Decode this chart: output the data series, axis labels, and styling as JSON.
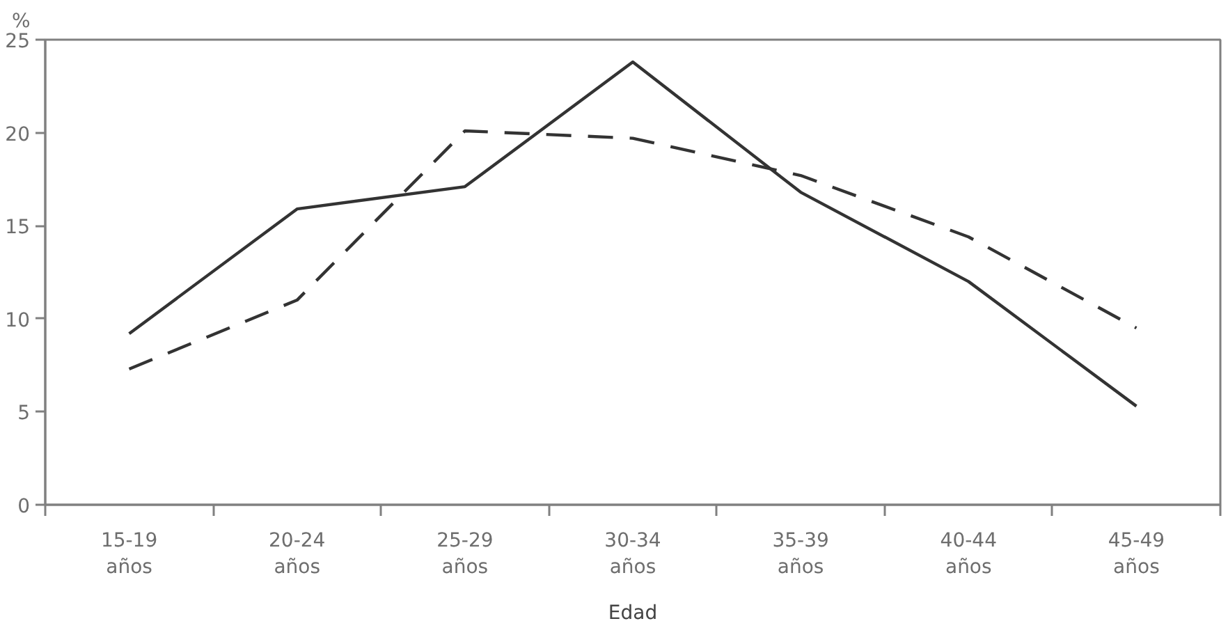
{
  "chart_data": {
    "type": "line",
    "ylabel": "%",
    "xlabel": "Edad",
    "categories": [
      "15-19 años",
      "20-24 años",
      "25-29 años",
      "30-34 años",
      "35-39 años",
      "40-44 años",
      "45-49 años"
    ],
    "series": [
      {
        "color": "#333333",
        "line_style": "solid",
        "values": [
          9.2,
          15.9,
          17.1,
          23.8,
          16.8,
          12.0,
          5.3
        ]
      },
      {
        "color": "#333333",
        "line_style": "dashed",
        "values": [
          7.3,
          11.0,
          20.1,
          19.7,
          17.7,
          14.4,
          9.5
        ]
      }
    ],
    "ylim": [
      0,
      25
    ],
    "yticks": [
      0,
      5,
      10,
      15,
      20,
      25
    ],
    "grid": false
  }
}
